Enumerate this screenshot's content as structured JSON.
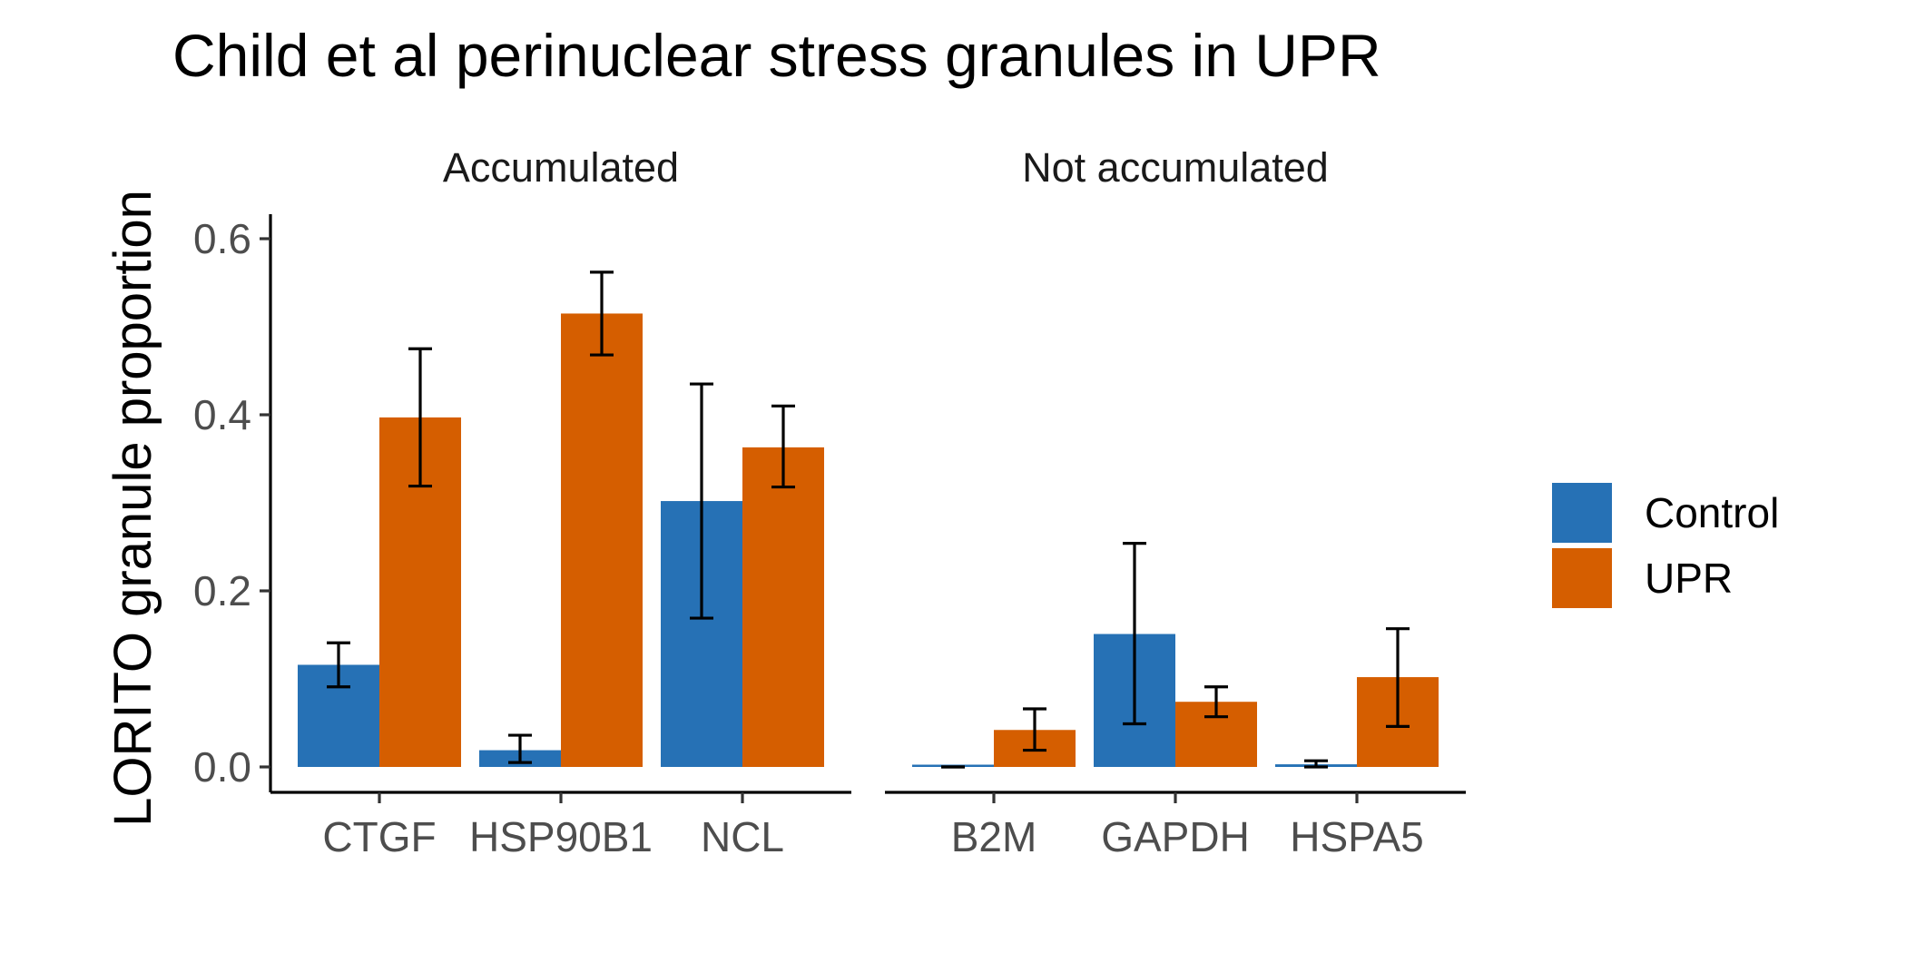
{
  "chart_data": {
    "type": "bar",
    "title": "Child et al perinuclear stress granules in UPR",
    "xlabel": "",
    "ylabel": "LORITO granule proportion",
    "ylim": [
      -0.03,
      0.63
    ],
    "yticks": [
      0.0,
      0.2,
      0.4,
      0.6
    ],
    "ytick_labels": [
      "0.0",
      "0.2",
      "0.4",
      "0.6"
    ],
    "legend": {
      "position": "right",
      "entries": [
        {
          "name": "Control",
          "color": "#2671b5"
        },
        {
          "name": "UPR",
          "color": "#d55e00"
        }
      ]
    },
    "panels": [
      {
        "name": "Accumulated",
        "categories": [
          "CTGF",
          "HSP90B1",
          "NCL"
        ],
        "series": [
          {
            "name": "Control",
            "values": [
              0.116,
              0.019,
              0.302
            ],
            "err_low": [
              0.091,
              0.005,
              0.169
            ],
            "err_high": [
              0.141,
              0.036,
              0.435
            ]
          },
          {
            "name": "UPR",
            "values": [
              0.397,
              0.515,
              0.363
            ],
            "err_low": [
              0.319,
              0.468,
              0.318
            ],
            "err_high": [
              0.475,
              0.562,
              0.41
            ]
          }
        ]
      },
      {
        "name": "Not accumulated",
        "categories": [
          "B2M",
          "GAPDH",
          "HSPA5"
        ],
        "series": [
          {
            "name": "Control",
            "values": [
              0.0,
              0.151,
              0.003
            ],
            "err_low": [
              0.0,
              0.049,
              0.0
            ],
            "err_high": [
              0.0,
              0.254,
              0.007
            ]
          },
          {
            "name": "UPR",
            "values": [
              0.042,
              0.074,
              0.102
            ],
            "err_low": [
              0.019,
              0.057,
              0.046
            ],
            "err_high": [
              0.066,
              0.091,
              0.157
            ]
          }
        ]
      }
    ]
  }
}
